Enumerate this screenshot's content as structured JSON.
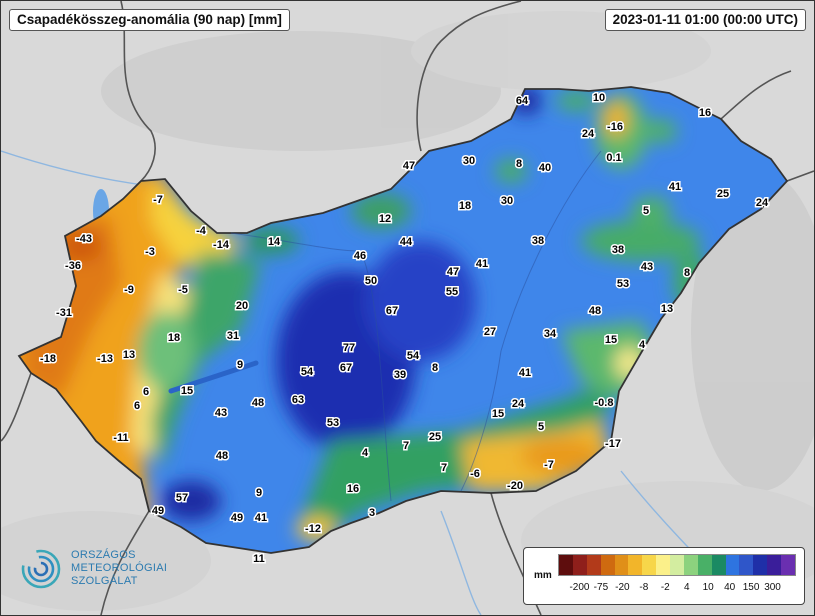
{
  "header": {
    "title": "Csapadékösszeg-anomália (90 nap) [mm]",
    "timestamp": "2023-01-11 01:00 (00:00 UTC)"
  },
  "legend": {
    "unit": "mm",
    "ticks": [
      "-200",
      "-75",
      "-20",
      "-8",
      "-2",
      "4",
      "10",
      "40",
      "150",
      "300"
    ],
    "colors": [
      "#5e0d0d",
      "#8f1f1b",
      "#b23a1a",
      "#cf6a10",
      "#e08f18",
      "#f2b52a",
      "#f7d64a",
      "#fbf08a",
      "#d3eda0",
      "#8cd27e",
      "#49b067",
      "#1b8a63",
      "#2e74e0",
      "#2f56c9",
      "#1f2fa8",
      "#3a1e9a",
      "#6a2fb0"
    ]
  },
  "logo": {
    "line1": "ORSZÁGOS",
    "line2": "METEOROLÓGIAI",
    "line3": "SZOLGÁLAT"
  },
  "map_values": [
    "64",
    "10",
    "16",
    "-16",
    "24",
    "0.1",
    "47",
    "30",
    "8",
    "40",
    "41",
    "25",
    "24",
    "5",
    "18",
    "30",
    "12",
    "44",
    "46",
    "38",
    "38",
    "47",
    "41",
    "43",
    "8",
    "50",
    "55",
    "53",
    "14",
    "-14",
    "-4",
    "-7",
    "-43",
    "-3",
    "-36",
    "-9",
    "-5",
    "-31",
    "20",
    "67",
    "48",
    "13",
    "27",
    "34",
    "31",
    "18",
    "77",
    "15",
    "4",
    "13",
    "9",
    "-18",
    "-13",
    "54",
    "67",
    "54",
    "8",
    "41",
    "39",
    "6",
    "15",
    "63",
    "24",
    "-0.8",
    "6",
    "43",
    "48",
    "15",
    "5",
    "53",
    "-11",
    "25",
    "-17",
    "7",
    "4",
    "48",
    "16",
    "-6",
    "-7",
    "7",
    "9",
    "57",
    "-20",
    "49",
    "49",
    "41",
    "3",
    "-12",
    "11"
  ]
}
